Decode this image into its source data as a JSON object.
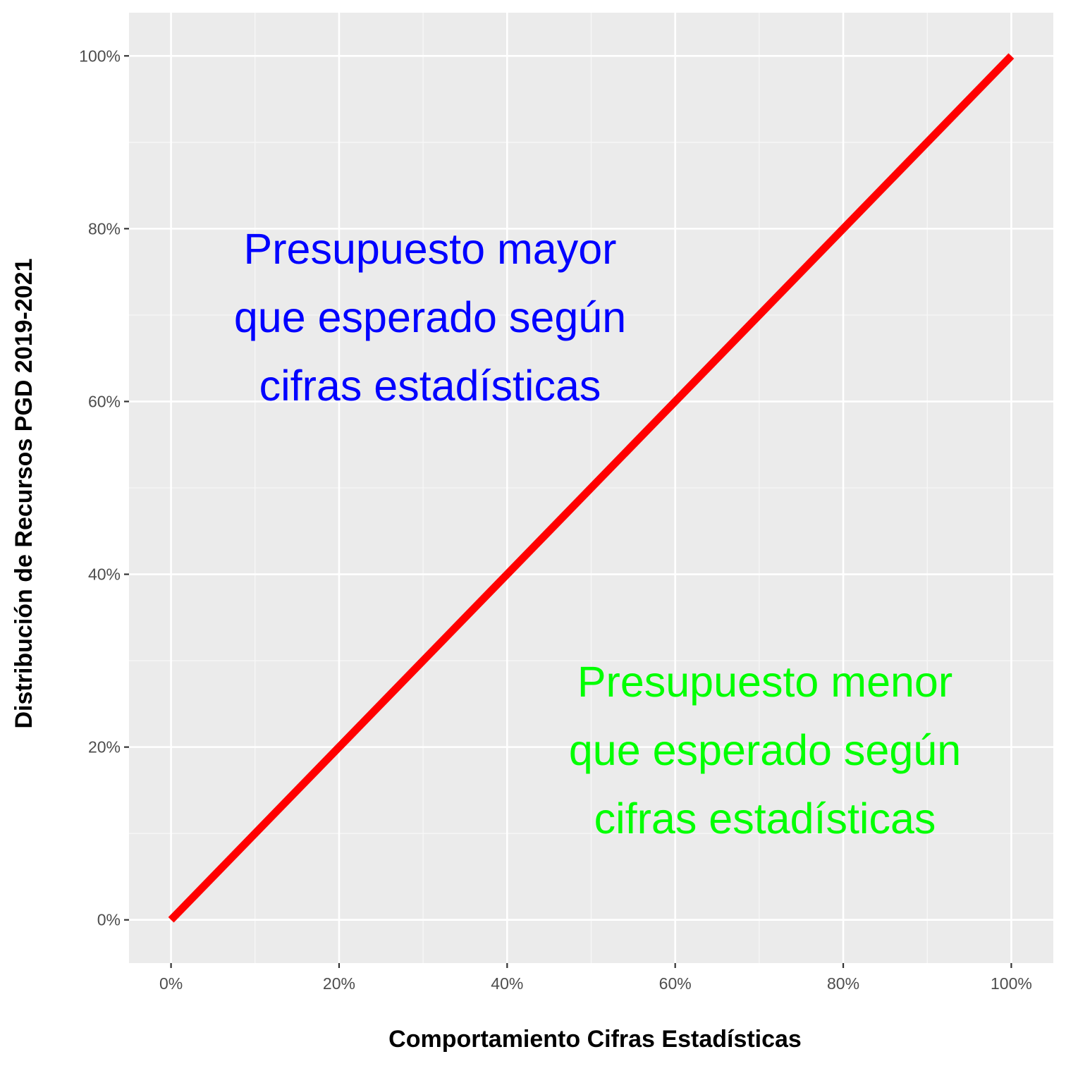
{
  "chart_data": {
    "type": "line",
    "title": "",
    "xlabel": "Comportamiento Cifras Estadísticas",
    "ylabel": "Distribución de Recursos PGD 2019-2021",
    "xlim": [
      -0.05,
      1.05
    ],
    "ylim": [
      -0.05,
      1.05
    ],
    "x_ticks": [
      0,
      0.2,
      0.4,
      0.6,
      0.8,
      1.0
    ],
    "x_tick_labels": [
      "0%",
      "20%",
      "40%",
      "60%",
      "80%",
      "100%"
    ],
    "y_ticks": [
      0,
      0.2,
      0.4,
      0.6,
      0.8,
      1.0
    ],
    "y_tick_labels": [
      "0%",
      "20%",
      "40%",
      "60%",
      "80%",
      "100%"
    ],
    "grid": true,
    "series": [
      {
        "x": [
          0,
          1.0
        ],
        "y": [
          0,
          1.0
        ],
        "color": "#ff0000"
      }
    ],
    "annotations": [
      {
        "lines": [
          "Presupuesto mayor",
          "que esperado según",
          "cifras estadísticas"
        ],
        "color": "#0000ff"
      },
      {
        "lines": [
          "Presupuesto menor",
          "que esperado según",
          "cifras estadísticas"
        ],
        "color": "#00ff00"
      }
    ]
  },
  "colors": {
    "panel_background": "#ebebeb",
    "grid_major": "#ffffff",
    "grid_minor": "#f7f7f7",
    "tick_text": "#4d4d4d",
    "line": "#ff0000"
  }
}
